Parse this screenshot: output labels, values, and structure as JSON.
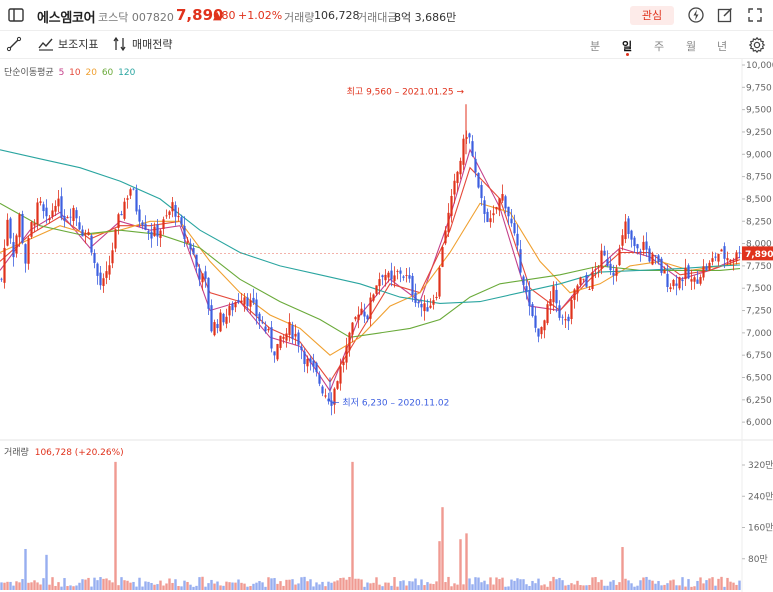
{
  "header": {
    "name": "에스엠코어",
    "market_code": "코스닥  007820",
    "price": "7,890",
    "change": "▲80",
    "change_pct": "+1.02%",
    "volume_label": "거래량",
    "volume_value": "106,728",
    "amount_label": "거래대금",
    "amount_value": "8억 3,686만",
    "favorite_label": "관심",
    "icons": [
      "sidebar-toggle-icon",
      "lightning-icon",
      "edit-icon",
      "fullscreen-icon"
    ]
  },
  "toolbar": {
    "indicator_label": "보조지표",
    "strategy_label": "매매전략",
    "periods": [
      "분",
      "일",
      "주",
      "월",
      "년"
    ],
    "active_period": "일",
    "icons": [
      "draw-line-icon",
      "indicator-icon",
      "strategy-icon",
      "settings-icon"
    ]
  },
  "legend": {
    "title": "단순이동평균",
    "items": [
      {
        "label": "5",
        "color": "#c4408a"
      },
      {
        "label": "10",
        "color": "#e5493a"
      },
      {
        "label": "20",
        "color": "#f0a030"
      },
      {
        "label": "60",
        "color": "#6aaa3a"
      },
      {
        "label": "120",
        "color": "#2aa5a0"
      }
    ]
  },
  "volume_legend": {
    "label": "거래량",
    "value": "106,728 (+20.26%)"
  },
  "colors": {
    "up": "#e0321c",
    "down": "#3d5fe0",
    "vol_up": "#f09a92",
    "vol_down": "#97aef0"
  },
  "chart_data": {
    "type": "candlestick",
    "price_axis": {
      "min": 5800,
      "max": 10000,
      "ticks": [
        6000,
        6250,
        6500,
        6750,
        7000,
        7250,
        7500,
        7750,
        8000,
        8250,
        8500,
        8750,
        9000,
        9250,
        9500,
        9750,
        10000
      ],
      "tick_labels": [
        "6,000",
        "6,250",
        "6,500",
        "6,750",
        "7,000",
        "7,250",
        "7,500",
        "7,750",
        "8,000",
        "8,250",
        "8,500",
        "8,750",
        "9,000",
        "9,250",
        "9,500",
        "9,750",
        "10,000"
      ]
    },
    "volume_axis": {
      "ticks": [
        800000,
        1600000,
        2400000,
        3200000
      ],
      "tick_labels": [
        "80만",
        "160만",
        "240만",
        "320만"
      ]
    },
    "current_price": 7890,
    "current_price_label": "7,890",
    "high_annotation": {
      "value": 9560,
      "text": "최고 9,560 – 2021.01.25 →"
    },
    "low_annotation": {
      "value": 6230,
      "text": "← 최저 6,230 – 2020.11.02"
    },
    "close_path": [
      [
        0,
        7600
      ],
      [
        6,
        8300
      ],
      [
        12,
        7900
      ],
      [
        18,
        8300
      ],
      [
        24,
        7800
      ],
      [
        30,
        8200
      ],
      [
        38,
        8450
      ],
      [
        46,
        8200
      ],
      [
        54,
        8500
      ],
      [
        62,
        8300
      ],
      [
        72,
        8400
      ],
      [
        80,
        8150
      ],
      [
        88,
        8100
      ],
      [
        94,
        7700
      ],
      [
        100,
        7500
      ],
      [
        106,
        7650
      ],
      [
        112,
        8000
      ],
      [
        118,
        8300
      ],
      [
        124,
        8500
      ],
      [
        130,
        8650
      ],
      [
        136,
        8350
      ],
      [
        142,
        8250
      ],
      [
        150,
        8100
      ],
      [
        158,
        8150
      ],
      [
        166,
        8300
      ],
      [
        172,
        8450
      ],
      [
        178,
        8200
      ],
      [
        184,
        8050
      ],
      [
        190,
        7950
      ],
      [
        196,
        7700
      ],
      [
        204,
        7550
      ],
      [
        210,
        7050
      ],
      [
        218,
        7150
      ],
      [
        226,
        7200
      ],
      [
        234,
        7350
      ],
      [
        242,
        7450
      ],
      [
        250,
        7300
      ],
      [
        258,
        7150
      ],
      [
        266,
        7000
      ],
      [
        272,
        6800
      ],
      [
        280,
        6900
      ],
      [
        288,
        7050
      ],
      [
        296,
        6950
      ],
      [
        304,
        6700
      ],
      [
        310,
        6600
      ],
      [
        316,
        6500
      ],
      [
        322,
        6350
      ],
      [
        330,
        6250
      ],
      [
        336,
        6500
      ],
      [
        342,
        6700
      ],
      [
        350,
        7000
      ],
      [
        358,
        7300
      ],
      [
        366,
        7200
      ],
      [
        374,
        7550
      ],
      [
        382,
        7700
      ],
      [
        390,
        7550
      ],
      [
        398,
        7700
      ],
      [
        406,
        7600
      ],
      [
        414,
        7400
      ],
      [
        422,
        7250
      ],
      [
        430,
        7350
      ],
      [
        436,
        7500
      ],
      [
        442,
        8100
      ],
      [
        448,
        8350
      ],
      [
        454,
        8700
      ],
      [
        460,
        9000
      ],
      [
        466,
        9300
      ],
      [
        472,
        8900
      ],
      [
        478,
        8500
      ],
      [
        484,
        8350
      ],
      [
        490,
        8200
      ],
      [
        496,
        8450
      ],
      [
        502,
        8550
      ],
      [
        510,
        8200
      ],
      [
        516,
        7900
      ],
      [
        522,
        7600
      ],
      [
        528,
        7250
      ],
      [
        534,
        7050
      ],
      [
        540,
        7000
      ],
      [
        546,
        7250
      ],
      [
        552,
        7450
      ],
      [
        560,
        7150
      ],
      [
        566,
        7100
      ],
      [
        572,
        7400
      ],
      [
        578,
        7600
      ],
      [
        586,
        7500
      ],
      [
        594,
        7700
      ],
      [
        600,
        7850
      ],
      [
        606,
        7800
      ],
      [
        612,
        7700
      ],
      [
        618,
        7900
      ],
      [
        624,
        8200
      ],
      [
        630,
        8000
      ],
      [
        636,
        7900
      ],
      [
        642,
        8000
      ],
      [
        648,
        7850
      ],
      [
        654,
        7800
      ],
      [
        660,
        7700
      ],
      [
        668,
        7550
      ],
      [
        676,
        7600
      ],
      [
        684,
        7650
      ],
      [
        692,
        7550
      ],
      [
        700,
        7700
      ],
      [
        708,
        7750
      ],
      [
        716,
        7900
      ],
      [
        724,
        7850
      ],
      [
        732,
        7850
      ],
      [
        740,
        7890
      ]
    ],
    "moving_averages": [
      {
        "name": "5",
        "color": "#c4408a",
        "values": [
          [
            0,
            7700
          ],
          [
            30,
            8150
          ],
          [
            60,
            8350
          ],
          [
            90,
            7950
          ],
          [
            120,
            8250
          ],
          [
            150,
            8150
          ],
          [
            180,
            8200
          ],
          [
            210,
            7250
          ],
          [
            240,
            7350
          ],
          [
            270,
            6950
          ],
          [
            300,
            6850
          ],
          [
            330,
            6350
          ],
          [
            360,
            7200
          ],
          [
            390,
            7600
          ],
          [
            420,
            7350
          ],
          [
            450,
            8300
          ],
          [
            470,
            9050
          ],
          [
            500,
            8400
          ],
          [
            530,
            7300
          ],
          [
            560,
            7250
          ],
          [
            590,
            7650
          ],
          [
            620,
            7950
          ],
          [
            650,
            7850
          ],
          [
            680,
            7600
          ],
          [
            710,
            7700
          ],
          [
            740,
            7850
          ]
        ]
      },
      {
        "name": "10",
        "color": "#e5493a",
        "values": [
          [
            0,
            7800
          ],
          [
            30,
            8100
          ],
          [
            60,
            8300
          ],
          [
            90,
            8050
          ],
          [
            120,
            8200
          ],
          [
            150,
            8200
          ],
          [
            180,
            8250
          ],
          [
            210,
            7450
          ],
          [
            240,
            7350
          ],
          [
            270,
            7050
          ],
          [
            300,
            6900
          ],
          [
            330,
            6450
          ],
          [
            360,
            7000
          ],
          [
            390,
            7550
          ],
          [
            420,
            7450
          ],
          [
            450,
            8150
          ],
          [
            470,
            8850
          ],
          [
            500,
            8500
          ],
          [
            530,
            7500
          ],
          [
            560,
            7250
          ],
          [
            590,
            7600
          ],
          [
            620,
            7900
          ],
          [
            650,
            7900
          ],
          [
            680,
            7650
          ],
          [
            710,
            7700
          ],
          [
            740,
            7820
          ]
        ]
      },
      {
        "name": "20",
        "color": "#f0a030",
        "values": [
          [
            0,
            7900
          ],
          [
            30,
            8050
          ],
          [
            60,
            8200
          ],
          [
            90,
            8100
          ],
          [
            120,
            8150
          ],
          [
            150,
            8250
          ],
          [
            180,
            8250
          ],
          [
            210,
            7800
          ],
          [
            240,
            7450
          ],
          [
            270,
            7200
          ],
          [
            300,
            7050
          ],
          [
            330,
            6750
          ],
          [
            360,
            6950
          ],
          [
            390,
            7300
          ],
          [
            420,
            7450
          ],
          [
            450,
            7900
          ],
          [
            480,
            8450
          ],
          [
            510,
            8350
          ],
          [
            540,
            7800
          ],
          [
            570,
            7450
          ],
          [
            600,
            7550
          ],
          [
            630,
            7750
          ],
          [
            660,
            7800
          ],
          [
            690,
            7700
          ],
          [
            720,
            7750
          ],
          [
            740,
            7780
          ]
        ]
      },
      {
        "name": "60",
        "color": "#6aaa3a",
        "values": [
          [
            0,
            8450
          ],
          [
            40,
            8200
          ],
          [
            80,
            8100
          ],
          [
            120,
            8150
          ],
          [
            160,
            8100
          ],
          [
            200,
            7950
          ],
          [
            240,
            7600
          ],
          [
            280,
            7350
          ],
          [
            320,
            7150
          ],
          [
            350,
            6950
          ],
          [
            380,
            7000
          ],
          [
            410,
            7050
          ],
          [
            440,
            7150
          ],
          [
            470,
            7400
          ],
          [
            500,
            7550
          ],
          [
            530,
            7600
          ],
          [
            560,
            7650
          ],
          [
            600,
            7750
          ],
          [
            640,
            7700
          ],
          [
            680,
            7700
          ],
          [
            720,
            7700
          ],
          [
            740,
            7720
          ]
        ]
      },
      {
        "name": "120",
        "color": "#2aa5a0",
        "values": [
          [
            0,
            9050
          ],
          [
            40,
            8950
          ],
          [
            80,
            8850
          ],
          [
            120,
            8700
          ],
          [
            160,
            8500
          ],
          [
            200,
            8150
          ],
          [
            240,
            7900
          ],
          [
            280,
            7750
          ],
          [
            320,
            7650
          ],
          [
            360,
            7550
          ],
          [
            400,
            7400
          ],
          [
            440,
            7330
          ],
          [
            480,
            7350
          ],
          [
            520,
            7450
          ],
          [
            560,
            7550
          ],
          [
            600,
            7680
          ],
          [
            640,
            7700
          ],
          [
            680,
            7720
          ],
          [
            720,
            7750
          ],
          [
            740,
            7760
          ]
        ]
      }
    ],
    "volume_spikes": [
      {
        "i": 113,
        "value": 3280000
      },
      {
        "i": 350,
        "value": 3280000
      },
      {
        "i": 440,
        "value": 2120000
      },
      {
        "i": 460,
        "value": 1300000
      },
      {
        "i": 620,
        "value": 1100000
      },
      {
        "i": 24,
        "value": 1050000
      },
      {
        "i": 44,
        "value": 900000
      },
      {
        "i": 437,
        "value": 1250000
      },
      {
        "i": 466,
        "value": 1450000
      }
    ]
  }
}
